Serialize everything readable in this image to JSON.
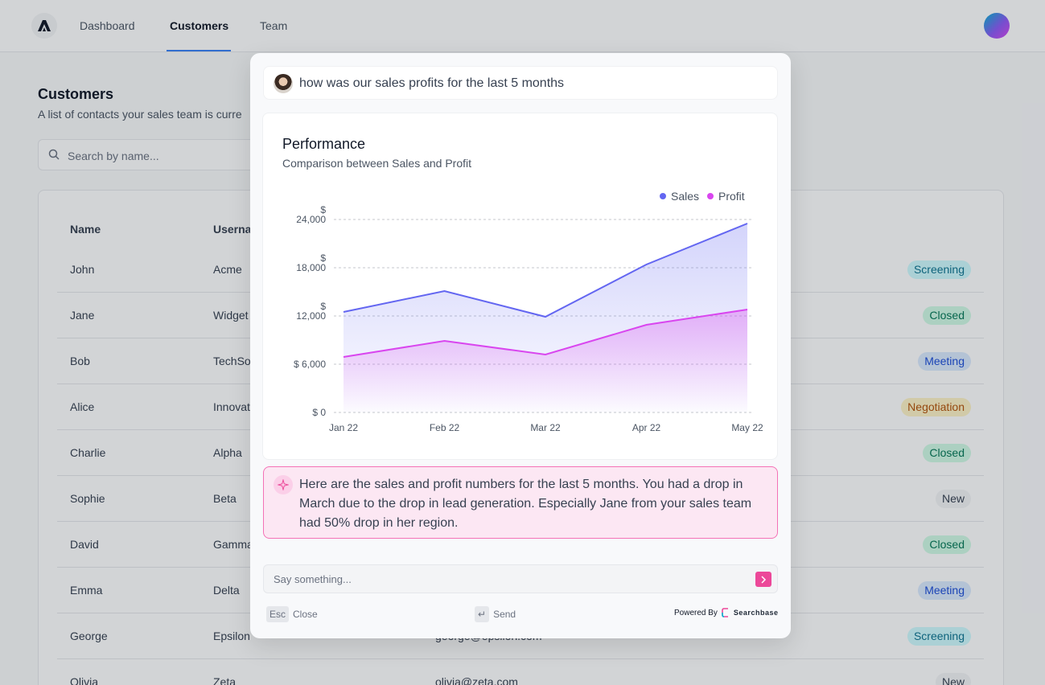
{
  "nav": {
    "items": [
      "Dashboard",
      "Customers",
      "Team"
    ],
    "active": "Customers"
  },
  "page": {
    "title": "Customers",
    "subtitle": "A list of contacts your sales team is curre",
    "search_placeholder": "Search by name..."
  },
  "table": {
    "headers": {
      "name": "Name",
      "username": "Userna"
    },
    "rows": [
      {
        "name": "John",
        "company": "Acme",
        "email": "",
        "status": "Screening"
      },
      {
        "name": "Jane",
        "company": "Widget",
        "email": "",
        "status": "Closed"
      },
      {
        "name": "Bob",
        "company": "TechSo",
        "email": "",
        "status": "Meeting"
      },
      {
        "name": "Alice",
        "company": "Innovat",
        "email": "",
        "status": "Negotiation"
      },
      {
        "name": "Charlie",
        "company": "Alpha",
        "email": "",
        "status": "Closed"
      },
      {
        "name": "Sophie",
        "company": "Beta",
        "email": "",
        "status": "New"
      },
      {
        "name": "David",
        "company": "Gamma",
        "email": "",
        "status": "Closed"
      },
      {
        "name": "Emma",
        "company": "Delta",
        "email": "",
        "status": "Meeting"
      },
      {
        "name": "George",
        "company": "Epsilon",
        "email": "george@epsilon.com",
        "status": "Screening"
      },
      {
        "name": "Olivia",
        "company": "Zeta",
        "email": "olivia@zeta.com",
        "status": "New"
      }
    ],
    "status_colors": {
      "Screening": {
        "bg": "#cffafe",
        "fg": "#0e7490"
      },
      "Closed": {
        "bg": "#d1fae5",
        "fg": "#047857"
      },
      "Meeting": {
        "bg": "#dbeafe",
        "fg": "#1d4ed8"
      },
      "Negotiation": {
        "bg": "#fef3c7",
        "fg": "#b45309"
      },
      "New": {
        "bg": "#f3f4f6",
        "fg": "#374151"
      }
    }
  },
  "modal": {
    "question": "how was our sales profits for the last 5 months",
    "answer": "Here are the sales and profit numbers for the last 5 months. You had a drop in March due to the drop in lead generation. Especially Jane from your sales team had 50% drop in her region.",
    "input_placeholder": "Say something...",
    "footer": {
      "esc_key": "Esc",
      "esc_label": "Close",
      "send_key": "↵",
      "send_label": "Send",
      "powered_by": "Powered By",
      "brand": "Searchbase"
    }
  },
  "chart_data": {
    "type": "area",
    "title": "Performance",
    "subtitle": "Comparison between Sales and Profit",
    "categories": [
      "Jan 22",
      "Feb 22",
      "Mar 22",
      "Apr 22",
      "May 22"
    ],
    "series": [
      {
        "name": "Sales",
        "values": [
          12500,
          15100,
          11900,
          18400,
          23500
        ],
        "color": "#6366f1"
      },
      {
        "name": "Profit",
        "values": [
          6900,
          8900,
          7200,
          10900,
          12800
        ],
        "color": "#d946ef"
      }
    ],
    "y_ticks": [
      {
        "value": 24000,
        "label_line1": "$",
        "label_line2": "24,000"
      },
      {
        "value": 18000,
        "label_line1": "$",
        "label_line2": "18,000"
      },
      {
        "value": 12000,
        "label_line1": "$",
        "label_line2": "12,000"
      },
      {
        "value": 6000,
        "label_line1": "",
        "label_line2": "$ 6,000"
      },
      {
        "value": 0,
        "label_line1": "",
        "label_line2": "$ 0"
      }
    ],
    "ylim": [
      0,
      24000
    ],
    "grid": true,
    "legend_position": "top-right"
  }
}
